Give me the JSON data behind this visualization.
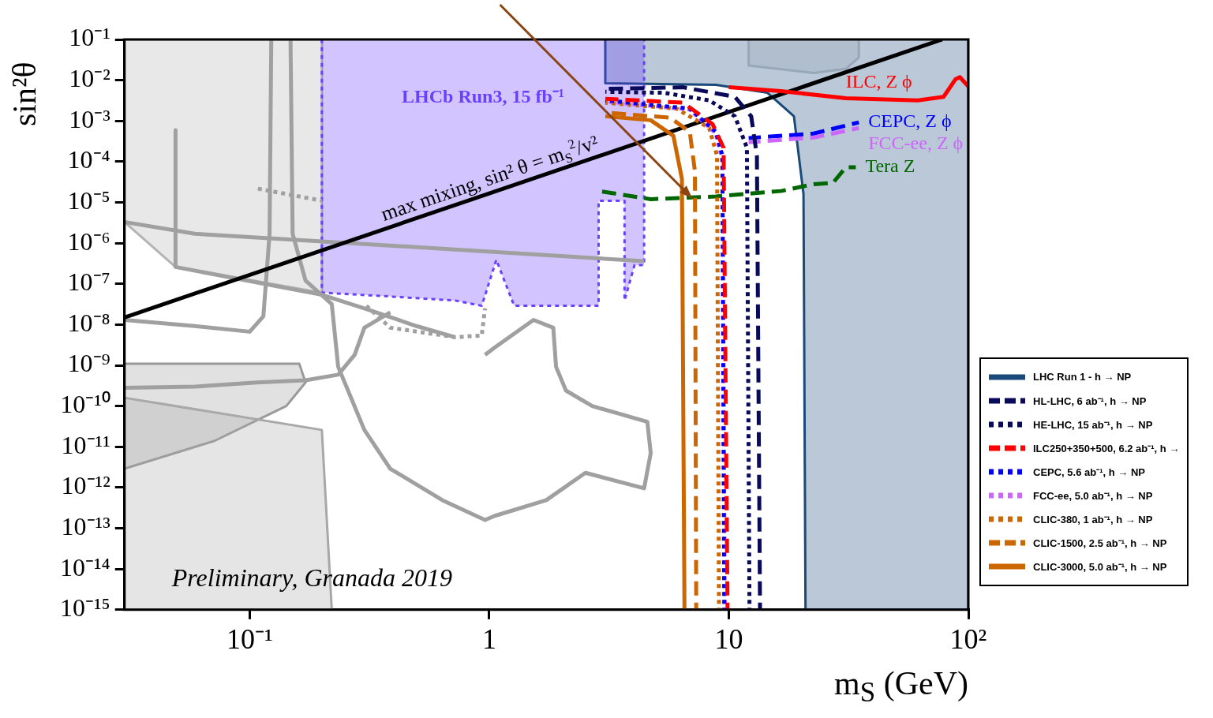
{
  "chart_data": {
    "type": "line",
    "xlabel": "m$_{S}$ (GeV)",
    "ylabel": "sin²θ",
    "log": "xy",
    "grid": false,
    "legend": "bottom right",
    "marker": "none",
    "xlim": [
      0.03,
      100
    ],
    "ylim": [
      1e-15,
      0.1
    ],
    "xticks": [
      {
        "value": 0.1,
        "label": "10⁻¹"
      },
      1,
      10,
      {
        "value": 100,
        "label": "10²"
      }
    ],
    "yticks": [
      {
        "value": 1e-15,
        "label": "10⁻¹⁵"
      },
      {
        "value": 1e-14,
        "label": "10⁻¹⁴"
      },
      {
        "value": 1e-13,
        "label": "10⁻¹³"
      },
      {
        "value": 1e-12,
        "label": "10⁻¹²"
      },
      {
        "value": 1e-11,
        "label": "10⁻¹¹"
      },
      {
        "value": 1e-10,
        "label": "10⁻¹⁰"
      },
      {
        "value": 1e-09,
        "label": "10⁻⁹"
      },
      {
        "value": 1e-08,
        "label": "10⁻⁸"
      },
      {
        "value": 1e-07,
        "label": "10⁻⁷"
      },
      {
        "value": 1e-06,
        "label": "10⁻⁶"
      },
      {
        "value": 1e-05,
        "label": "10⁻⁵"
      },
      {
        "value": 0.0001,
        "label": "10⁻⁴"
      },
      {
        "value": 0.001,
        "label": "10⁻³"
      },
      {
        "value": 0.01,
        "label": "10⁻²"
      },
      {
        "value": 0.1,
        "label": "10⁻¹"
      }
    ],
    "series": [
      {
        "type": "area",
        "name": "LHC Run 1 - h → NP",
        "color": "#1a4a7a",
        "x": [
          3.05,
          3.05,
          8.83,
          14.5,
          18.7,
          20.5,
          20.9,
          100,
          100
        ],
        "values": [
          0.1,
          0.0084,
          0.0077,
          0.0049,
          0.0013,
          1.6e-05,
          1e-15,
          1e-15,
          0.1
        ]
      },
      {
        "type": "area",
        "color": "#98a8b8",
        "x": [
          12.1,
          12.1,
          22.6,
          30.8,
          34.9,
          34.9
        ],
        "values": [
          0.1,
          0.023,
          0.015,
          0.019,
          0.036,
          0.1
        ]
      },
      {
        "type": "area",
        "color": "#b4b4b4",
        "x": [
          0.03,
          0.2,
          0.2,
          0.049,
          0.03
        ],
        "values": [
          0.1,
          0.1,
          6.1e-08,
          2.6e-07,
          3.3e-06
        ]
      },
      {
        "type": "area",
        "color": "#9a9a9a",
        "x": [
          0.03,
          0.161,
          0.171,
          0.142,
          0.0713,
          0.03
        ],
        "values": [
          1.1e-09,
          1.1e-09,
          3.8e-10,
          1e-10,
          1.4e-11,
          2.9e-12
        ]
      },
      {
        "type": "area",
        "color": "#a8a8a8",
        "x": [
          0.03,
          0.2,
          0.22,
          0.03
        ],
        "values": [
          1.6e-10,
          2.6e-11,
          1e-15,
          1e-15
        ]
      },
      {
        "type": "area",
        "name": "LHCb Run3, 15 fb⁻¹",
        "color": "#6a40ff",
        "line_style": "dotted",
        "x": [
          0.2,
          0.2,
          0.386,
          0.72,
          0.93,
          1.07,
          1.27,
          2.86,
          2.86,
          3.67,
          3.67,
          4.04,
          4.43,
          4.43
        ],
        "values": [
          0.1,
          6.1e-08,
          4.9e-08,
          3.9e-08,
          2.9e-08,
          3.9e-07,
          2.9e-08,
          2.9e-08,
          1.1e-05,
          1.1e-05,
          3.9e-08,
          2.9e-07,
          2.9e-07,
          0.1
        ]
      },
      {
        "color": "#a0a0a0",
        "x": [
          0.03,
          0.059,
          0.2,
          0.72,
          4.43
        ],
        "values": [
          3.3e-06,
          1.7e-06,
          1.1e-06,
          7e-07,
          3.6e-07
        ]
      },
      {
        "color": "#a0a0a0",
        "x": [
          0.049,
          0.049,
          0.2,
          0.301,
          0.497,
          0.72
        ],
        "values": [
          0.00059,
          2.6e-07,
          5.4e-08,
          2.5e-08,
          9.2e-09,
          4.9e-09
        ]
      },
      {
        "color": "#a0a0a0",
        "x": [
          0.123,
          0.121,
          0.114,
          0.1,
          0.059,
          0.03
        ],
        "values": [
          0.1,
          1.7e-06,
          1.6e-08,
          6.7e-09,
          9.2e-09,
          1.3e-08
        ]
      },
      {
        "color": "#a0a0a0",
        "x": [
          0.148,
          0.151,
          0.171,
          0.22,
          0.234,
          0.301,
          0.386,
          0.637,
          0.96,
          1.05,
          1.73,
          2.52,
          4.43,
          4.72,
          4.57,
          2.69,
          2.09,
          1.9,
          1.85,
          1.53,
          1.05,
          0.96
        ],
        "values": [
          0.1,
          1.7e-06,
          1.2e-07,
          3.2e-08,
          9.2e-10,
          2.6e-11,
          2.9e-12,
          4.9e-13,
          1.6e-13,
          2e-13,
          4.9e-13,
          2.3e-12,
          9.6e-13,
          7e-12,
          4.1e-11,
          1e-10,
          2.4e-10,
          9.2e-10,
          8.4e-09,
          1.3e-08,
          2.7e-09,
          1.8e-09
        ]
      },
      {
        "color": "#a0a0a0",
        "x": [
          0.03,
          0.059,
          0.107,
          0.171,
          0.234,
          0.274,
          0.301,
          0.386
        ],
        "values": [
          2.8e-10,
          3e-10,
          3.8e-10,
          4.3e-10,
          5.9e-10,
          1.8e-09,
          8.4e-09,
          2e-08
        ]
      },
      {
        "color": "#a0a0a0",
        "line_style": "dotted",
        "x": [
          0.107,
          0.2
        ],
        "values": [
          2.2e-05,
          1.1e-05
        ]
      },
      {
        "color": "#a0a0a0",
        "line_style": "dotted",
        "x": [
          0.301,
          0.386,
          0.72,
          0.93,
          0.96
        ],
        "values": [
          3.2e-08,
          8.4e-09,
          4.9e-09,
          5.4e-09,
          2.5e-08
        ]
      },
      {
        "color": "#000000",
        "x": [
          0.03,
          77.8
        ],
        "values": [
          1.5e-08,
          0.1
        ]
      },
      {
        "name": "HL-LHC, 6 ab⁻¹, h → NP",
        "color": "#0a0a5a",
        "line_style": "dashed",
        "x": [
          3.05,
          6.45,
          10.6,
          12.4,
          13.1,
          13.5
        ],
        "values": [
          0.0061,
          0.0067,
          0.0039,
          0.0013,
          0.00014,
          1e-15
        ]
      },
      {
        "name": "HE-LHC, 15 ab⁻¹, h → NP",
        "color": "#0a0a5a",
        "line_style": "dotted",
        "x": [
          3.05,
          5.35,
          8.28,
          10.6,
          11.9,
          12.2
        ],
        "values": [
          0.0052,
          0.0049,
          0.0032,
          0.0013,
          0.00022,
          1e-15
        ]
      },
      {
        "name": "ILC250+350+500, 6.2 ab⁻¹, h →",
        "color": "#ff0000",
        "line_style": "dashed",
        "x": [
          3.05,
          6.45,
          8.55,
          9.51,
          9.88
        ],
        "values": [
          0.0035,
          0.0028,
          0.00084,
          0.00022,
          1e-15
        ]
      },
      {
        "name": "CEPC, 5.6 ab⁻¹, h → NP",
        "color": "#0000ff",
        "line_style": "dotted",
        "x": [
          3.05,
          6.87,
          8.83,
          9.4,
          9.57
        ],
        "values": [
          0.0032,
          0.002,
          0.00054,
          0.00014,
          1e-15
        ]
      },
      {
        "name": "FCC-ee, 5.0 ab⁻¹, h → NP",
        "color": "#cc66ff",
        "line_style": "dotted",
        "x": [
          3.05,
          6.87,
          8.83,
          9.4,
          9.63
        ],
        "values": [
          0.003,
          0.0019,
          0.00049,
          0.00011,
          1e-15
        ]
      },
      {
        "name": "CLIC-380, 1 ab⁻¹, h → NP",
        "color": "#cc6600",
        "line_style": "dotted",
        "x": [
          3.05,
          6.06,
          8.28,
          8.93,
          9.1
        ],
        "values": [
          0.0028,
          0.002,
          0.00067,
          0.00014,
          1e-15
        ]
      },
      {
        "name": "CLIC-1500, 2.5 ab⁻¹, h → NP",
        "color": "#cc6600",
        "line_style": "dashed",
        "x": [
          3.05,
          5.69,
          6.87,
          7.22,
          7.31
        ],
        "values": [
          0.0016,
          0.0012,
          0.00054,
          5.9e-05,
          1e-15
        ]
      },
      {
        "name": "CLIC-3000, 5.0 ab⁻¹, h → NP",
        "color": "#cc6600",
        "x": [
          3.05,
          4.72,
          5.87,
          6.37,
          6.53
        ],
        "values": [
          0.0013,
          0.00104,
          0.00043,
          3.8e-05,
          1e-15
        ]
      },
      {
        "color": "#ff0000",
        "x": [
          10,
          16.5,
          30.8,
          61.4,
          78.8,
          88.3,
          92.2,
          100
        ],
        "values": [
          0.0067,
          0.0054,
          0.0036,
          0.0032,
          0.0039,
          0.0105,
          0.0119,
          0.007
        ]
      },
      {
        "color": "#0000ff",
        "line_style": "dashed",
        "x": [
          12.1,
          22.6,
          34.9
        ],
        "values": [
          0.00038,
          0.00049,
          0.00092
        ]
      },
      {
        "color": "#cc66ff",
        "line_style": "dashed",
        "x": [
          12.1,
          22.6,
          34.9
        ],
        "values": [
          0.0003,
          0.00039,
          0.00067
        ]
      },
      {
        "color": "#006600",
        "line_style": "dashed",
        "x": [
          2.86,
          4.72,
          8.83,
          16.5,
          22.6,
          27.2,
          30.8,
          33.9
        ],
        "values": [
          1.9e-05,
          1.2e-05,
          1.4e-05,
          1.9e-05,
          2.8e-05,
          3e-05,
          7.3e-05,
          7.3e-05
        ]
      }
    ],
    "annotations": [
      {
        "text": "ILC, Z ϕ",
        "x": 30.8,
        "y": 0.0036
      },
      {
        "text": "CEPC, Z ϕ",
        "x": 34.9,
        "y": 0.00092
      },
      {
        "text": "FCC-ee, Z ϕ",
        "x": 34.9,
        "y": 0.00067
      },
      {
        "text": "Tera Z",
        "x": 33.9,
        "y": 7.3e-05
      },
      {
        "text": "max mixing, sin² θ = m$_{S}$$^{2}$/v²",
        "x": 1.05,
        "y": 1.8e-05
      },
      "Preliminary, Granada 2019"
    ]
  }
}
